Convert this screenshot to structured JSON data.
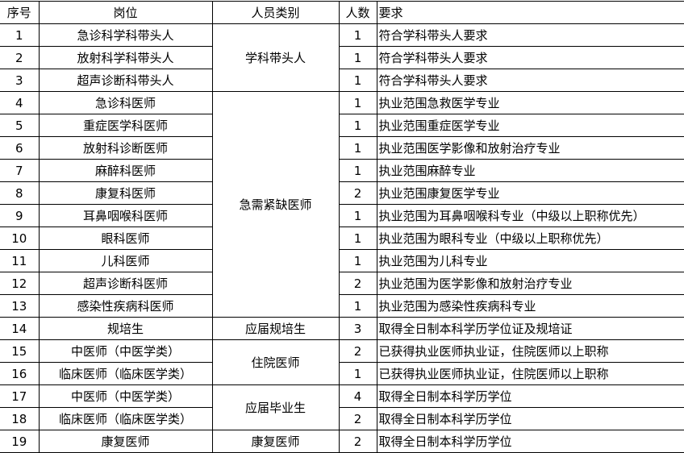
{
  "headers": [
    "序号",
    "岗位",
    "人员类别",
    "人数",
    "要求"
  ],
  "groups": [
    {
      "category": "学科带头人",
      "rows": [
        {
          "no": "1",
          "post": "急诊科学科带头人",
          "count": "1",
          "req": "符合学科带头人要求"
        },
        {
          "no": "2",
          "post": "放射科学科带头人",
          "count": "1",
          "req": "符合学科带头人要求"
        },
        {
          "no": "3",
          "post": "超声诊断科带头人",
          "count": "1",
          "req": "符合学科带头人要求"
        }
      ]
    },
    {
      "category": "急需紧缺医师",
      "rows": [
        {
          "no": "4",
          "post": "急诊科医师",
          "count": "1",
          "req": "执业范围急救医学专业"
        },
        {
          "no": "5",
          "post": "重症医学科医师",
          "count": "1",
          "req": "执业范围重症医学专业"
        },
        {
          "no": "6",
          "post": "放射科诊断医师",
          "count": "1",
          "req": "执业范围医学影像和放射治疗专业"
        },
        {
          "no": "7",
          "post": "麻醉科医师",
          "count": "1",
          "req": "执业范围麻醉专业"
        },
        {
          "no": "8",
          "post": "康复科医师",
          "count": "2",
          "req": "执业范围康复医学专业"
        },
        {
          "no": "9",
          "post": "耳鼻咽喉科医师",
          "count": "1",
          "req": "执业范围为耳鼻咽喉科专业（中级以上职称优先）"
        },
        {
          "no": "10",
          "post": "眼科医师",
          "count": "1",
          "req": "执业范围为眼科专业（中级以上职称优先）"
        },
        {
          "no": "11",
          "post": "儿科医师",
          "count": "1",
          "req": "执业范围为儿科专业"
        },
        {
          "no": "12",
          "post": "超声诊断科医师",
          "count": "2",
          "req": "执业范围为医学影像和放射治疗专业"
        },
        {
          "no": "13",
          "post": "感染性疾病科医师",
          "count": "1",
          "req": "执业范围为感染性疾病科专业"
        }
      ]
    },
    {
      "category": "应届规培生",
      "rows": [
        {
          "no": "14",
          "post": "规培生",
          "count": "3",
          "req": "取得全日制本科学历学位证及规培证"
        }
      ]
    },
    {
      "category": "住院医师",
      "rows": [
        {
          "no": "15",
          "post": "中医师（中医学类）",
          "count": "2",
          "req": "已获得执业医师执业证，住院医师以上职称"
        },
        {
          "no": "16",
          "post": "临床医师（临床医学类）",
          "count": "1",
          "req": "已获得执业医师执业证，住院医师以上职称"
        }
      ]
    },
    {
      "category": "应届毕业生",
      "rows": [
        {
          "no": "17",
          "post": "中医师（中医学类）",
          "count": "4",
          "req": "取得全日制本科学历学位"
        },
        {
          "no": "18",
          "post": "临床医师（临床医学类）",
          "count": "2",
          "req": "取得全日制本科学历学位"
        }
      ]
    },
    {
      "category": "康复医师",
      "rows": [
        {
          "no": "19",
          "post": "康复医师",
          "count": "2",
          "req": "取得全日制本科学历学位"
        }
      ]
    }
  ]
}
